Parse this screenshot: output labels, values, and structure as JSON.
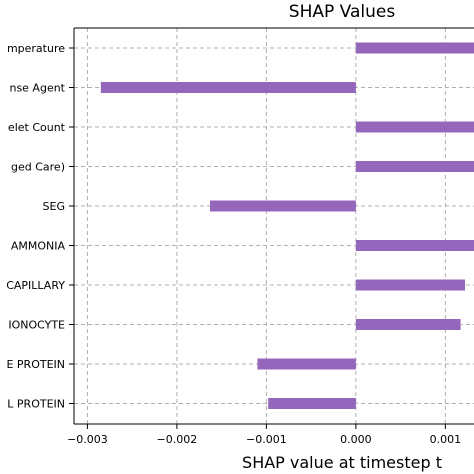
{
  "chart_data": {
    "type": "bar",
    "orientation": "horizontal",
    "title": "SHAP Values",
    "xlabel": "SHAP value at timestep t",
    "ylabel": "",
    "categories": [
      "mperature",
      "nse Agent",
      "elet Count",
      "ged Care)",
      "SEG",
      "AMMONIA",
      "CAPILLARY",
      "IONOCYTE",
      "E PROTEIN",
      "L PROTEIN"
    ],
    "values": [
      0.0018,
      -0.00285,
      0.0018,
      0.0018,
      -0.00163,
      0.00136,
      0.00122,
      0.00117,
      -0.0011,
      -0.00098
    ],
    "xlim": [
      -0.00315,
      0.00132
    ],
    "xticks": [
      -0.003,
      -0.002,
      -0.001,
      0.0,
      0.001
    ],
    "xtick_labels": [
      "−0.003",
      "−0.002",
      "−0.001",
      "0.000",
      "0.001"
    ],
    "bar_color": "#9467bd",
    "grid": true
  }
}
